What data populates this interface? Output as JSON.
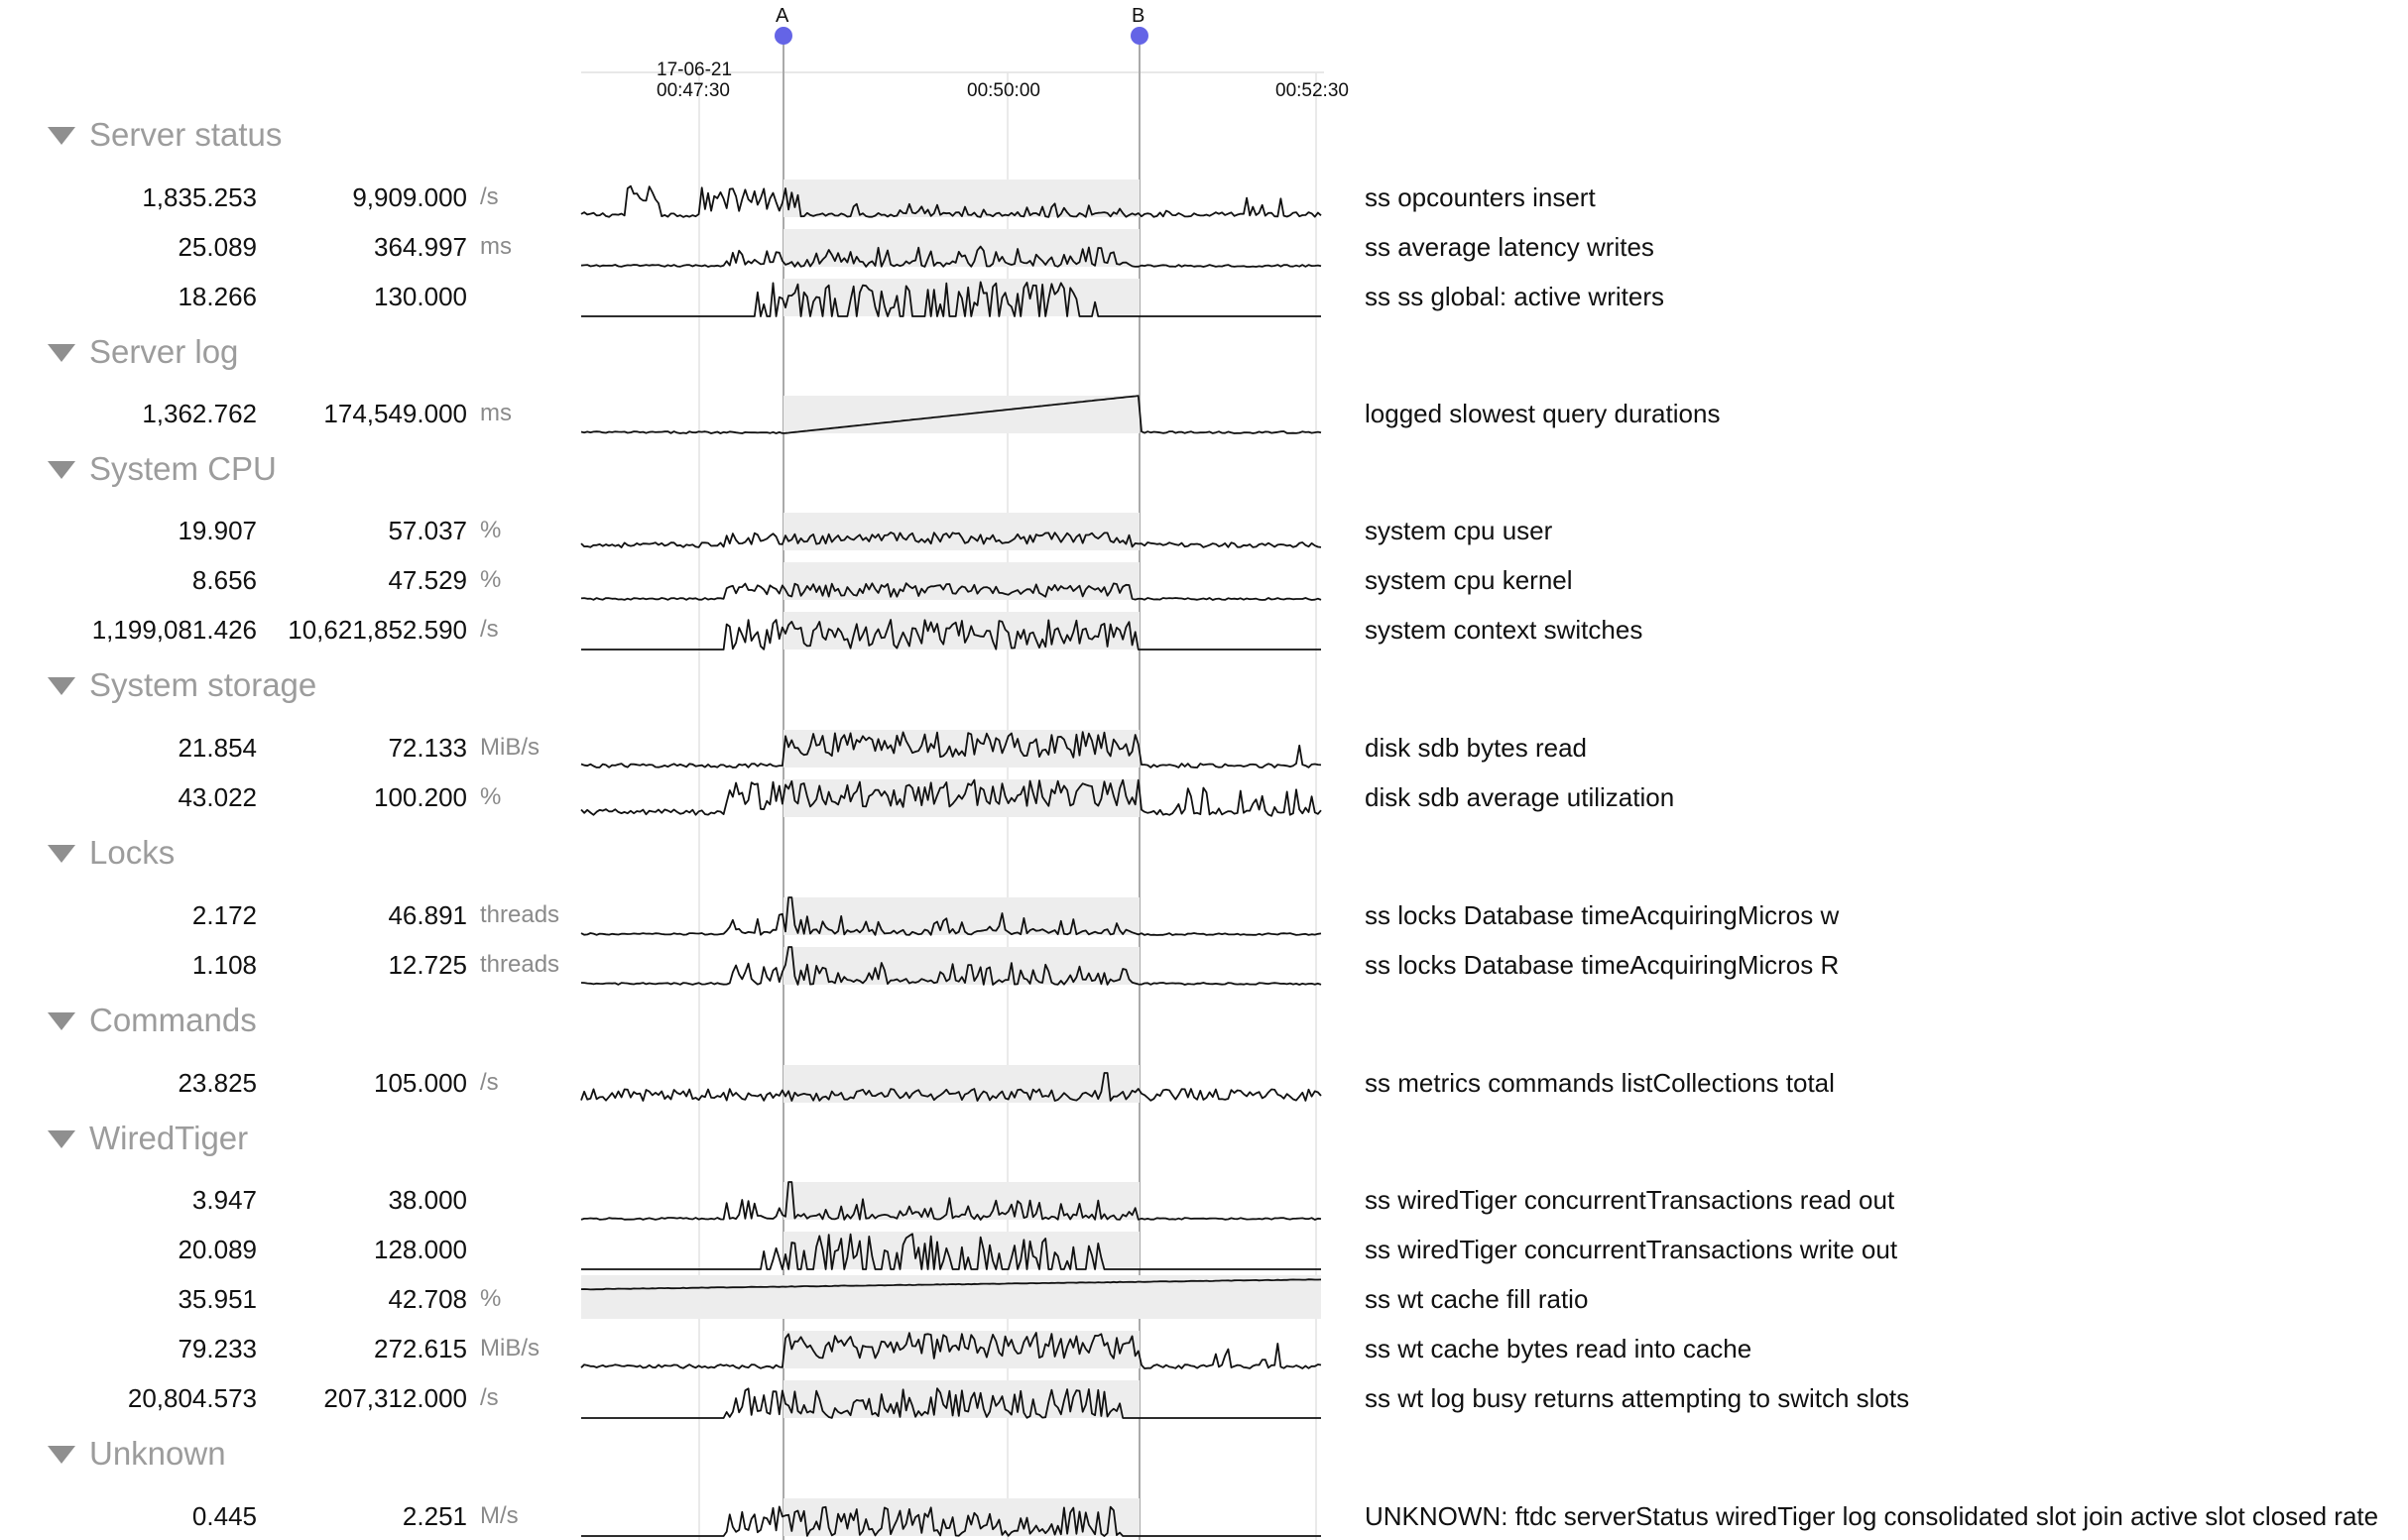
{
  "timeline": {
    "date_label": "17-06-21",
    "time_labels": [
      "00:47:30",
      "00:50:00",
      "00:52:30"
    ],
    "markers": [
      {
        "label": "A"
      },
      {
        "label": "B"
      }
    ],
    "colors": {
      "marker": "#6464e6",
      "grid": "#d8d8d8",
      "range_line": "#aaaaaa"
    }
  },
  "groups": [
    {
      "title": "Server status",
      "metrics": [
        {
          "value": "1,835.253",
          "max": "9,909.000",
          "unit": "/s",
          "name": "ss opcounters insert",
          "shape": "insert"
        },
        {
          "value": "25.089",
          "max": "364.997",
          "unit": "ms",
          "name": "ss average latency writes",
          "shape": "latency"
        },
        {
          "value": "18.266",
          "max": "130.000",
          "unit": "",
          "name": "ss ss global: active writers",
          "shape": "writers"
        }
      ]
    },
    {
      "title": "Server log",
      "metrics": [
        {
          "value": "1,362.762",
          "max": "174,549.000",
          "unit": "ms",
          "name": "logged slowest query durations",
          "shape": "ramp"
        }
      ]
    },
    {
      "title": "System CPU",
      "metrics": [
        {
          "value": "19.907",
          "max": "57.037",
          "unit": "%",
          "name": "system cpu user",
          "shape": "cpu"
        },
        {
          "value": "8.656",
          "max": "47.529",
          "unit": "%",
          "name": "system cpu kernel",
          "shape": "kernel"
        },
        {
          "value": "1,199,081.426",
          "max": "10,621,852.590",
          "unit": "/s",
          "name": "system context switches",
          "shape": "switches"
        }
      ]
    },
    {
      "title": "System storage",
      "metrics": [
        {
          "value": "21.854",
          "max": "72.133",
          "unit": "MiB/s",
          "name": "disk sdb bytes read",
          "shape": "disk"
        },
        {
          "value": "43.022",
          "max": "100.200",
          "unit": "%",
          "name": "disk sdb average utilization",
          "shape": "util"
        }
      ]
    },
    {
      "title": "Locks",
      "metrics": [
        {
          "value": "2.172",
          "max": "46.891",
          "unit": "threads",
          "name": "ss locks Database timeAcquiringMicros w",
          "shape": "spiky"
        },
        {
          "value": "1.108",
          "max": "12.725",
          "unit": "threads",
          "name": "ss locks Database timeAcquiringMicros R",
          "shape": "spiky2"
        }
      ]
    },
    {
      "title": "Commands",
      "metrics": [
        {
          "value": "23.825",
          "max": "105.000",
          "unit": "/s",
          "name": "ss metrics commands listCollections total",
          "shape": "noise"
        }
      ]
    },
    {
      "title": "WiredTiger",
      "metrics": [
        {
          "value": "3.947",
          "max": "38.000",
          "unit": "",
          "name": "ss wiredTiger concurrentTransactions read out",
          "shape": "spiky"
        },
        {
          "value": "20.089",
          "max": "128.000",
          "unit": "",
          "name": "ss wiredTiger concurrentTransactions write out",
          "shape": "writers"
        },
        {
          "value": "35.951",
          "max": "42.708",
          "unit": "%",
          "name": "ss wt cache fill ratio",
          "shape": "fill"
        },
        {
          "value": "79.233",
          "max": "272.615",
          "unit": "MiB/s",
          "name": "ss wt cache bytes read into cache",
          "shape": "disk"
        },
        {
          "value": "20,804.573",
          "max": "207,312.000",
          "unit": "/s",
          "name": "ss wt log busy returns attempting to switch slots",
          "shape": "busy"
        }
      ]
    },
    {
      "title": "Unknown",
      "metrics": [
        {
          "value": "0.445",
          "max": "2.251",
          "unit": "M/s",
          "name": "UNKNOWN: ftdc serverStatus wiredTiger log consolidated slot join active slot closed rate",
          "shape": "busy"
        }
      ]
    }
  ]
}
